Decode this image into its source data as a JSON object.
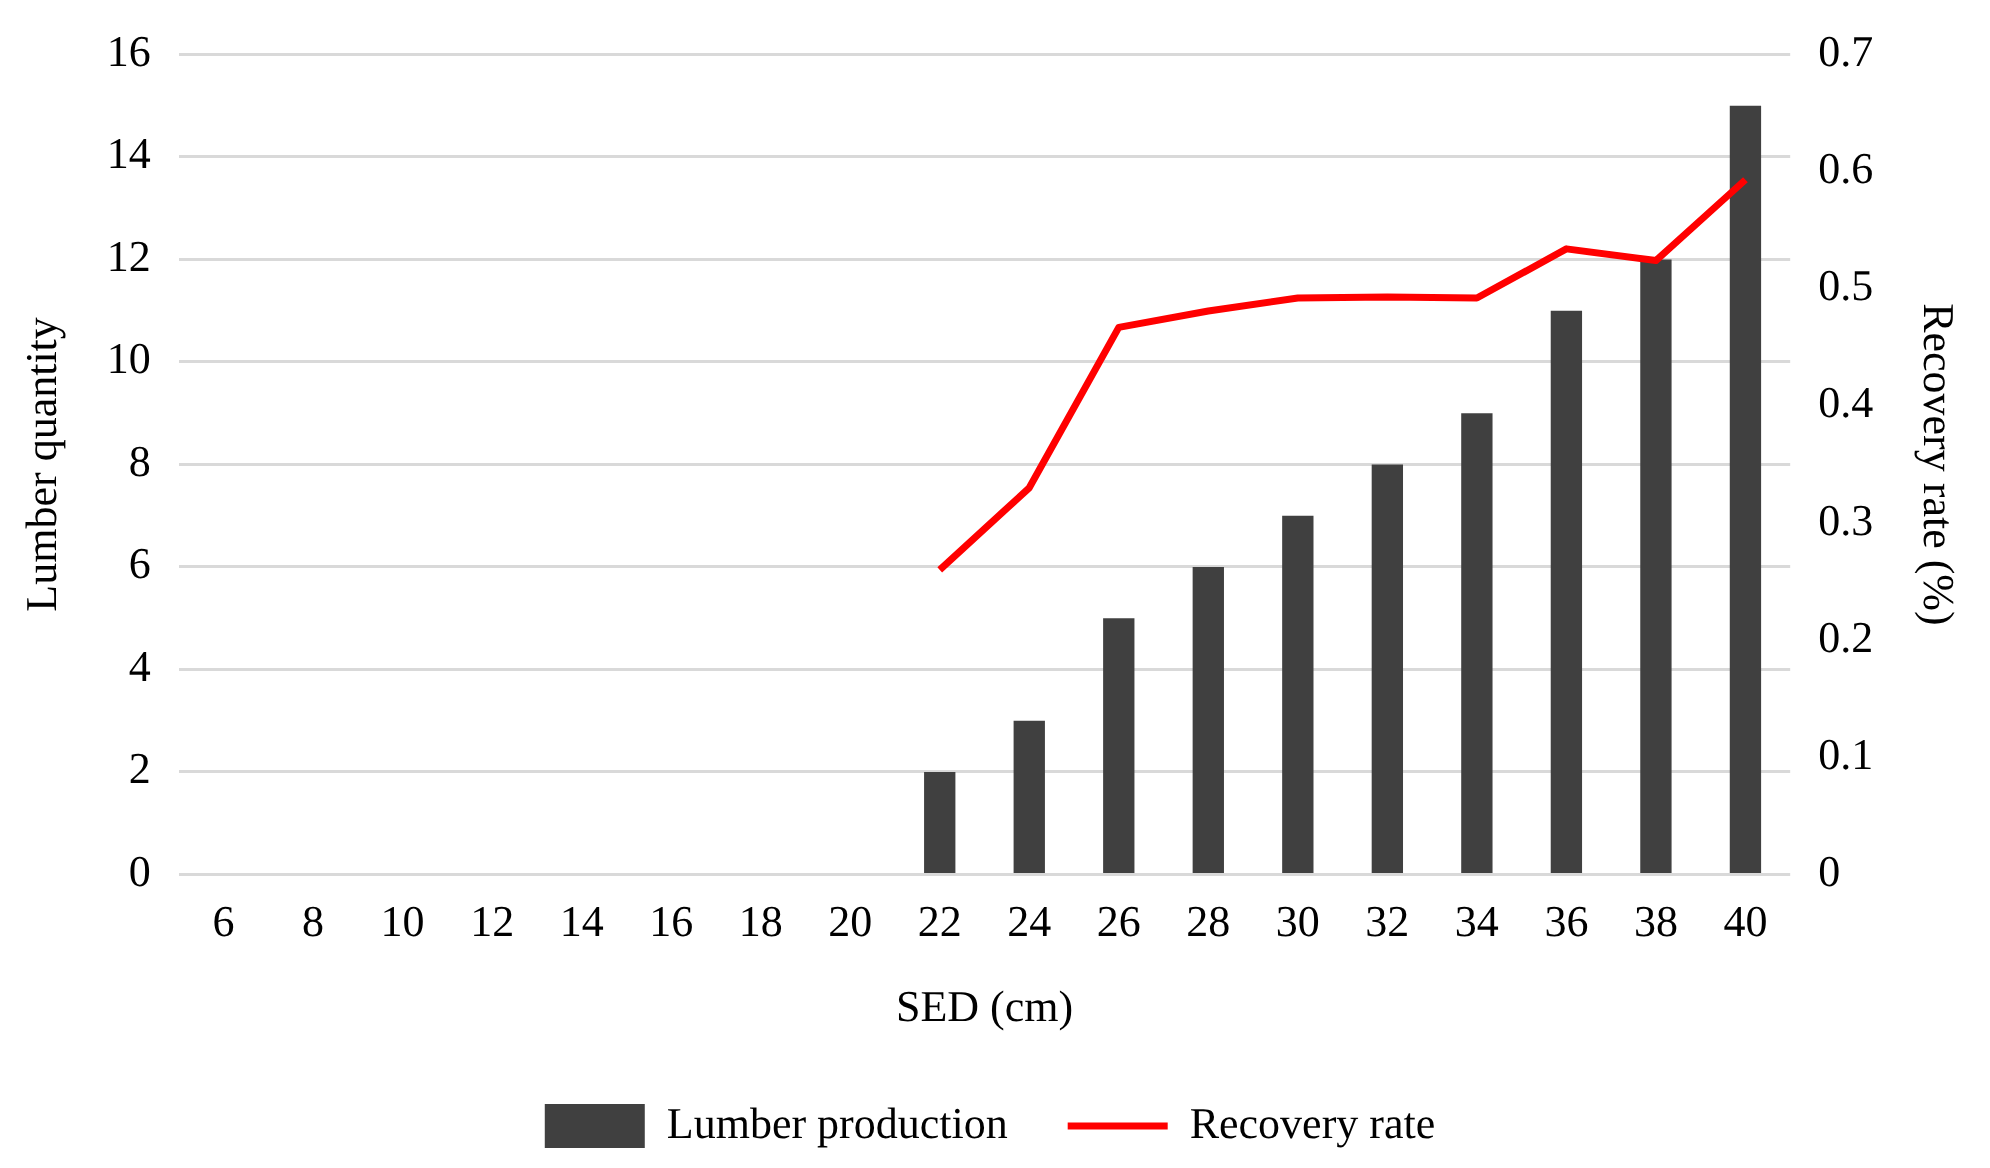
{
  "chart_data": {
    "type": "bar",
    "xlabel": "SED (cm)",
    "ylabel": "Lumber quantity",
    "y2label": "Recovery rate (%)",
    "categories": [
      "6",
      "8",
      "10",
      "12",
      "14",
      "16",
      "18",
      "20",
      "22",
      "24",
      "26",
      "28",
      "30",
      "32",
      "34",
      "36",
      "38",
      "40"
    ],
    "series": [
      {
        "name": "Lumber production",
        "color": "#404040",
        "values": [
          0,
          0,
          0,
          0,
          0,
          0,
          0,
          0,
          2,
          3,
          5,
          6,
          7,
          8,
          9,
          11,
          12,
          15
        ]
      },
      {
        "name": "Recovery rate",
        "type": "line",
        "axis": "y2",
        "color": "#ff0000",
        "values": [
          null,
          null,
          null,
          null,
          null,
          null,
          null,
          null,
          0.26,
          0.33,
          0.467,
          0.481,
          0.492,
          0.493,
          0.492,
          0.534,
          0.524,
          0.593
        ]
      }
    ],
    "ylim": [
      0,
      16
    ],
    "yticks": [
      0,
      2,
      4,
      6,
      8,
      10,
      12,
      14,
      16
    ],
    "y2lim": [
      0,
      0.7
    ],
    "y2ticks": [
      0,
      0.1,
      0.2,
      0.3,
      0.4,
      0.5,
      0.6,
      0.7
    ],
    "grid": "y",
    "legend": "bottom",
    "marker": "none"
  }
}
